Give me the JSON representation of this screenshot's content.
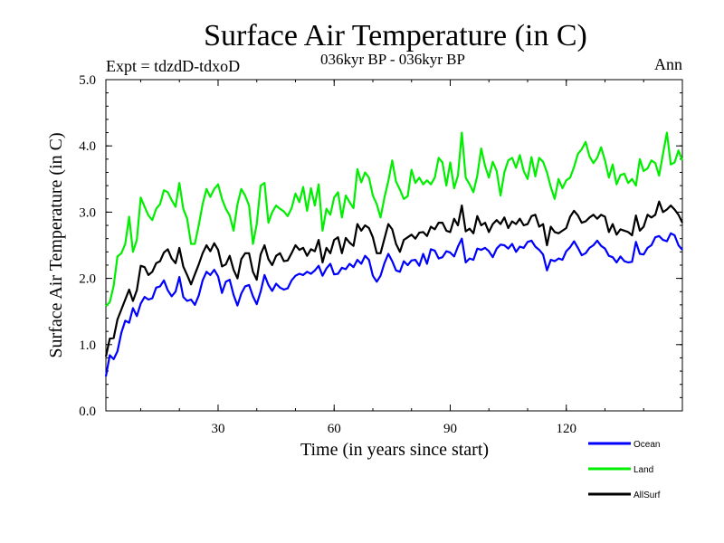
{
  "chart_data": {
    "type": "line",
    "title": "Surface Air Temperature (in C)",
    "subtitle": "036kyr BP - 036kyr BP",
    "left_label": "Expt = tdzdD-tdxoD",
    "right_label": "Ann",
    "xlabel": "Time (in years since start)",
    "ylabel": "Surface Air Temperature (in C)",
    "xlim": [
      1,
      150
    ],
    "ylim": [
      0,
      5
    ],
    "xticks": [
      30,
      60,
      90,
      120
    ],
    "xtick_labels": [
      "30",
      "60",
      "90",
      "120"
    ],
    "yticks": [
      0,
      1,
      2,
      3,
      4,
      5
    ],
    "ytick_labels": [
      "0.0",
      "1.0",
      "2.0",
      "3.0",
      "4.0",
      "5.0"
    ],
    "grid": false,
    "legend_position": "bottom-right",
    "x": [
      1,
      2,
      3,
      4,
      5,
      6,
      7,
      8,
      9,
      10,
      11,
      12,
      13,
      14,
      15,
      16,
      17,
      18,
      19,
      20,
      21,
      22,
      23,
      24,
      25,
      26,
      27,
      28,
      29,
      30,
      31,
      32,
      33,
      34,
      35,
      36,
      37,
      38,
      39,
      40,
      41,
      42,
      43,
      44,
      45,
      46,
      47,
      48,
      49,
      50,
      51,
      52,
      53,
      54,
      55,
      56,
      57,
      58,
      59,
      60,
      61,
      62,
      63,
      64,
      65,
      66,
      67,
      68,
      69,
      70,
      71,
      72,
      73,
      74,
      75,
      76,
      77,
      78,
      79,
      80,
      81,
      82,
      83,
      84,
      85,
      86,
      87,
      88,
      89,
      90,
      91,
      92,
      93,
      94,
      95,
      96,
      97,
      98,
      99,
      100,
      101,
      102,
      103,
      104,
      105,
      106,
      107,
      108,
      109,
      110,
      111,
      112,
      113,
      114,
      115,
      116,
      117,
      118,
      119,
      120,
      121,
      122,
      123,
      124,
      125,
      126,
      127,
      128,
      129,
      130,
      131,
      132,
      133,
      134,
      135,
      136,
      137,
      138,
      139,
      140,
      141,
      142,
      143,
      144,
      145,
      146,
      147,
      148,
      149,
      150
    ],
    "series": [
      {
        "name": "Ocean",
        "color": "#0000ff",
        "values": [
          0.52,
          0.84,
          0.78,
          0.9,
          1.18,
          1.36,
          1.33,
          1.55,
          1.43,
          1.62,
          1.72,
          1.68,
          1.7,
          1.86,
          1.88,
          1.97,
          1.82,
          1.73,
          1.8,
          2.02,
          1.72,
          1.66,
          1.68,
          1.6,
          1.74,
          1.97,
          2.1,
          2.05,
          2.13,
          2.03,
          1.78,
          1.95,
          1.98,
          1.75,
          1.59,
          1.77,
          1.88,
          1.9,
          1.73,
          1.61,
          1.8,
          2.05,
          1.9,
          1.81,
          1.92,
          1.86,
          1.83,
          1.85,
          1.97,
          2.04,
          2.07,
          2.05,
          2.1,
          2.07,
          2.12,
          2.19,
          2.04,
          2.15,
          2.22,
          2.06,
          2.07,
          2.16,
          2.14,
          2.22,
          2.17,
          2.28,
          2.22,
          2.34,
          2.28,
          2.04,
          1.95,
          2.04,
          2.23,
          2.37,
          2.26,
          2.12,
          2.1,
          2.26,
          2.2,
          2.27,
          2.28,
          2.19,
          2.37,
          2.22,
          2.44,
          2.42,
          2.3,
          2.32,
          2.41,
          2.39,
          2.33,
          2.48,
          2.6,
          2.24,
          2.3,
          2.28,
          2.45,
          2.43,
          2.46,
          2.41,
          2.32,
          2.45,
          2.51,
          2.5,
          2.45,
          2.52,
          2.4,
          2.48,
          2.46,
          2.55,
          2.57,
          2.48,
          2.43,
          2.36,
          2.12,
          2.28,
          2.26,
          2.3,
          2.28,
          2.41,
          2.47,
          2.56,
          2.46,
          2.35,
          2.38,
          2.46,
          2.5,
          2.57,
          2.49,
          2.45,
          2.34,
          2.32,
          2.24,
          2.33,
          2.26,
          2.24,
          2.25,
          2.55,
          2.37,
          2.36,
          2.46,
          2.5,
          2.62,
          2.64,
          2.58,
          2.56,
          2.68,
          2.65,
          2.5,
          2.43
        ]
      },
      {
        "name": "Land",
        "color": "#00ee00",
        "values": [
          1.58,
          1.64,
          1.89,
          2.33,
          2.38,
          2.52,
          2.93,
          2.4,
          2.58,
          3.22,
          3.08,
          2.95,
          2.88,
          3.05,
          3.12,
          3.33,
          3.3,
          3.18,
          3.08,
          3.44,
          3.05,
          2.9,
          2.52,
          2.52,
          2.8,
          3.12,
          3.35,
          3.23,
          3.35,
          3.42,
          3.2,
          3.05,
          2.95,
          2.72,
          3.12,
          3.35,
          3.25,
          3.1,
          2.52,
          2.82,
          3.4,
          3.44,
          2.84,
          3.0,
          3.1,
          3.05,
          3.01,
          2.94,
          3.06,
          3.28,
          3.15,
          3.38,
          3.02,
          3.36,
          3.1,
          3.42,
          2.72,
          3.05,
          2.96,
          3.22,
          3.3,
          2.92,
          3.25,
          3.15,
          3.06,
          3.65,
          3.45,
          3.6,
          3.52,
          3.25,
          3.12,
          2.92,
          3.22,
          3.47,
          3.78,
          3.46,
          3.34,
          3.2,
          3.24,
          3.64,
          3.44,
          3.52,
          3.42,
          3.48,
          3.42,
          3.52,
          3.82,
          3.75,
          3.4,
          3.75,
          3.36,
          3.55,
          4.2,
          3.52,
          3.42,
          3.3,
          3.55,
          3.96,
          3.7,
          3.52,
          3.76,
          3.62,
          3.25,
          3.6,
          3.78,
          3.82,
          3.67,
          3.86,
          3.62,
          3.5,
          3.83,
          3.54,
          3.82,
          3.76,
          3.6,
          3.38,
          3.2,
          3.5,
          3.36,
          3.48,
          3.52,
          3.68,
          3.88,
          3.95,
          4.06,
          3.84,
          3.74,
          3.82,
          3.98,
          3.78,
          3.52,
          3.72,
          3.42,
          3.56,
          3.58,
          3.44,
          3.5,
          3.4,
          3.8,
          3.62,
          3.66,
          3.78,
          3.74,
          3.55,
          3.88,
          4.2,
          3.72,
          3.75,
          3.93,
          3.78
        ]
      },
      {
        "name": "AllSurf",
        "color": "#000000",
        "values": [
          0.82,
          1.09,
          1.1,
          1.38,
          1.53,
          1.68,
          1.83,
          1.66,
          1.82,
          2.19,
          2.17,
          2.05,
          2.1,
          2.23,
          2.26,
          2.39,
          2.44,
          2.3,
          2.23,
          2.46,
          2.18,
          2.05,
          1.91,
          2.06,
          2.21,
          2.38,
          2.5,
          2.41,
          2.53,
          2.43,
          2.18,
          2.21,
          2.34,
          2.13,
          2.0,
          2.29,
          2.38,
          2.38,
          2.1,
          1.98,
          2.36,
          2.5,
          2.29,
          2.2,
          2.34,
          2.38,
          2.26,
          2.27,
          2.38,
          2.5,
          2.43,
          2.46,
          2.34,
          2.44,
          2.41,
          2.58,
          2.24,
          2.46,
          2.38,
          2.58,
          2.62,
          2.38,
          2.61,
          2.54,
          2.49,
          2.82,
          2.72,
          2.8,
          2.76,
          2.62,
          2.38,
          2.38,
          2.6,
          2.82,
          2.74,
          2.52,
          2.4,
          2.58,
          2.62,
          2.66,
          2.6,
          2.69,
          2.7,
          2.64,
          2.78,
          2.74,
          2.84,
          2.84,
          2.72,
          2.7,
          2.9,
          2.8,
          3.1,
          2.71,
          2.75,
          2.68,
          2.94,
          2.8,
          2.84,
          2.7,
          2.82,
          2.88,
          2.82,
          2.92,
          2.76,
          2.86,
          2.82,
          2.9,
          2.8,
          2.82,
          2.94,
          2.96,
          2.78,
          2.82,
          2.5,
          2.78,
          2.7,
          2.68,
          2.72,
          2.76,
          2.93,
          3.02,
          2.95,
          2.84,
          2.86,
          2.92,
          2.96,
          2.9,
          2.96,
          2.93,
          2.7,
          2.82,
          2.66,
          2.74,
          2.72,
          2.7,
          2.65,
          2.95,
          2.72,
          2.78,
          2.96,
          2.92,
          2.96,
          3.16,
          3.0,
          3.04,
          3.1,
          3.04,
          2.96,
          2.84
        ]
      }
    ]
  }
}
